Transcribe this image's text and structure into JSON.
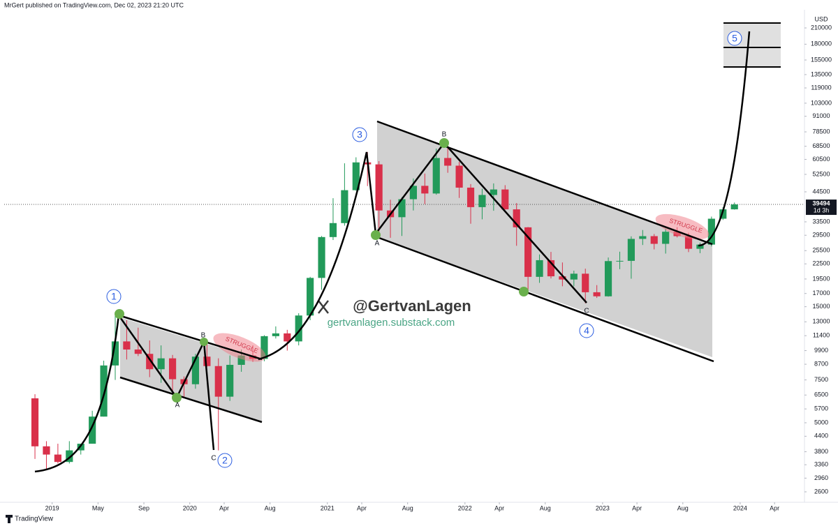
{
  "header": {
    "publisher": "MrGert published on TradingView.com, Dec 02, 2023 21:20 UTC"
  },
  "chart_data": {
    "type": "candlestick",
    "currency": "USD",
    "log": true,
    "grid": false,
    "up_color": "#229a5a",
    "down_color": "#d9304a",
    "x": [
      "2018-11",
      "2018-12",
      "2019-01",
      "2019-02",
      "2019-03",
      "2019-04",
      "2019-05",
      "2019-06",
      "2019-07",
      "2019-08",
      "2019-09",
      "2019-10",
      "2019-11",
      "2019-12",
      "2020-01",
      "2020-02",
      "2020-03",
      "2020-04",
      "2020-05",
      "2020-06",
      "2020-07",
      "2020-08",
      "2020-09",
      "2020-10",
      "2020-11",
      "2020-12",
      "2021-01",
      "2021-02",
      "2021-03",
      "2021-04",
      "2021-05",
      "2021-06",
      "2021-07",
      "2021-08",
      "2021-09",
      "2021-10",
      "2021-11",
      "2021-12",
      "2022-01",
      "2022-02",
      "2022-03",
      "2022-04",
      "2022-05",
      "2022-06",
      "2022-07",
      "2022-08",
      "2022-09",
      "2022-10",
      "2022-11",
      "2022-12",
      "2023-01",
      "2023-02",
      "2023-03",
      "2023-04",
      "2023-05",
      "2023-06",
      "2023-07",
      "2023-08",
      "2023-09",
      "2023-10",
      "2023-11",
      "2023-12"
    ],
    "open": [
      6300,
      4000,
      3700,
      3450,
      3850,
      4100,
      5300,
      8600,
      10800,
      10000,
      9600,
      8300,
      9200,
      7550,
      7200,
      9350,
      8550,
      6400,
      8650,
      9450,
      9150,
      11350,
      11650,
      10800,
      13800,
      19700,
      29000,
      33100,
      45200,
      58800,
      57700,
      37300,
      35000,
      41500,
      47100,
      43800,
      61300,
      57000,
      46300,
      38500,
      43200,
      45500,
      37700,
      31800,
      19900,
      23300,
      20000,
      19400,
      20500,
      17200,
      16550,
      23100,
      23150,
      28500,
      29250,
      27200,
      30500,
      29250,
      25950,
      27000,
      34500,
      37700
    ],
    "high": [
      6550,
      4200,
      4100,
      4200,
      4100,
      5600,
      9000,
      13800,
      13200,
      12300,
      10900,
      10400,
      9500,
      7750,
      9600,
      10500,
      9200,
      9450,
      10000,
      10400,
      11450,
      12450,
      12050,
      14100,
      19900,
      29300,
      41900,
      58300,
      61700,
      64900,
      59500,
      41300,
      42300,
      50500,
      52900,
      67000,
      69000,
      59100,
      47900,
      45800,
      48200,
      47400,
      40000,
      31900,
      24600,
      25200,
      22800,
      21100,
      21500,
      18400,
      23900,
      25250,
      29200,
      31000,
      29850,
      31400,
      31850,
      30200,
      27500,
      35200,
      38450,
      40200
    ],
    "low": [
      3550,
      3200,
      3400,
      3400,
      3700,
      4100,
      5300,
      7500,
      9100,
      9400,
      7700,
      7300,
      6600,
      6400,
      6900,
      8500,
      3850,
      6150,
      8100,
      8900,
      8950,
      11100,
      9900,
      10400,
      13200,
      17600,
      28200,
      32300,
      45000,
      47000,
      30000,
      28800,
      29300,
      37300,
      39600,
      43300,
      53300,
      42000,
      32900,
      34300,
      37200,
      37600,
      26700,
      17600,
      18800,
      19600,
      18200,
      18200,
      15500,
      16300,
      16500,
      21400,
      19550,
      26900,
      25800,
      24800,
      28900,
      25150,
      24900,
      26550,
      34100,
      37600
    ],
    "close": [
      4000,
      3700,
      3450,
      3850,
      4100,
      5300,
      8600,
      10800,
      10000,
      9600,
      8300,
      9200,
      7550,
      7200,
      9350,
      8550,
      6400,
      8650,
      9450,
      9150,
      11350,
      11650,
      10800,
      13800,
      19700,
      29000,
      33100,
      45200,
      58800,
      57700,
      37300,
      35000,
      41500,
      47100,
      43800,
      61300,
      57000,
      46300,
      38500,
      43200,
      45500,
      37700,
      31800,
      19900,
      23300,
      20000,
      19400,
      20500,
      17200,
      16550,
      23100,
      23150,
      28500,
      29250,
      27200,
      30500,
      29250,
      25950,
      27000,
      34500,
      37700,
      39494
    ],
    "last_price_countdown": "1d 3h",
    "xlim": [
      "2018-09",
      "2024-06"
    ],
    "xticks": [
      {
        "value": "2019-01",
        "label": "2019"
      },
      {
        "value": "2019-05",
        "label": "May"
      },
      {
        "value": "2019-09",
        "label": "Sep"
      },
      {
        "value": "2020-01",
        "label": "2020"
      },
      {
        "value": "2020-04",
        "label": "Apr"
      },
      {
        "value": "2020-08",
        "label": "Aug"
      },
      {
        "value": "2021-01",
        "label": "2021"
      },
      {
        "value": "2021-04",
        "label": "Apr"
      },
      {
        "value": "2021-08",
        "label": "Aug"
      },
      {
        "value": "2022-01",
        "label": "2022"
      },
      {
        "value": "2022-04",
        "label": "Apr"
      },
      {
        "value": "2022-08",
        "label": "Aug"
      },
      {
        "value": "2023-01",
        "label": "2023"
      },
      {
        "value": "2023-04",
        "label": "Apr"
      },
      {
        "value": "2023-08",
        "label": "Aug"
      },
      {
        "value": "2024-01",
        "label": "2024"
      },
      {
        "value": "2024-04",
        "label": "Apr"
      }
    ],
    "ylim": [
      2355,
      252700
    ],
    "yticks": [
      210000,
      180000,
      155000,
      135000,
      119000,
      103000,
      91000,
      78500,
      68500,
      60500,
      52500,
      44500,
      33500,
      29500,
      25500,
      22500,
      19500,
      17000,
      15000,
      13000,
      11400,
      9900,
      8700,
      7500,
      6500,
      5700,
      5000,
      4400,
      3800,
      3360,
      2960,
      2600
    ],
    "wave_labels": [
      "1",
      "2",
      "3",
      "4",
      "5"
    ],
    "point_labels": [
      "A",
      "B",
      "C",
      "A",
      "B",
      "C"
    ],
    "struggle_labels": [
      "STRUGGLE",
      "STRUGGLE"
    ],
    "watermark": {
      "handle": "@GertvanLagen",
      "site": "gertvanlagen.substack.com"
    }
  },
  "footer": {
    "brand": "TradingView"
  }
}
